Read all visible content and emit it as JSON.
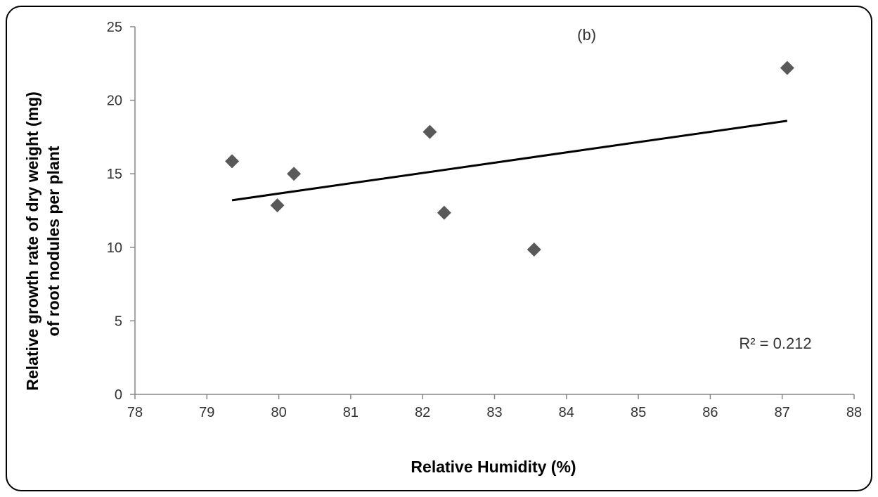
{
  "chart_data": {
    "type": "scatter",
    "title": "",
    "xlabel": "Relative Humidity (%)",
    "ylabel": [
      "Relative growth rate of dry weight (mg)",
      "of root nodules per plant"
    ],
    "xlim": [
      78,
      88
    ],
    "ylim": [
      0,
      25
    ],
    "xticks": [
      78,
      79,
      80,
      81,
      82,
      83,
      84,
      85,
      86,
      87,
      88
    ],
    "yticks": [
      0,
      5,
      10,
      15,
      20,
      25
    ],
    "grid": false,
    "legend": "none",
    "marker": "diamond",
    "marker_color": "#595959",
    "points": [
      {
        "x": 79.35,
        "y": 15.85
      },
      {
        "x": 79.98,
        "y": 12.85
      },
      {
        "x": 80.21,
        "y": 15.0
      },
      {
        "x": 82.1,
        "y": 17.85
      },
      {
        "x": 82.3,
        "y": 12.35
      },
      {
        "x": 83.55,
        "y": 9.85
      },
      {
        "x": 87.07,
        "y": 22.2
      }
    ],
    "trendline": {
      "type": "linear",
      "x": [
        79.35,
        87.07
      ],
      "y": [
        13.2,
        18.6
      ],
      "color": "#000000"
    },
    "annotations": [
      {
        "id": "panel-label",
        "text": "(b)",
        "x": 84.15,
        "y": 24.1
      },
      {
        "id": "r-squared-label",
        "text": "R² = 0.212",
        "x": 86.4,
        "y": 3.1
      }
    ]
  }
}
